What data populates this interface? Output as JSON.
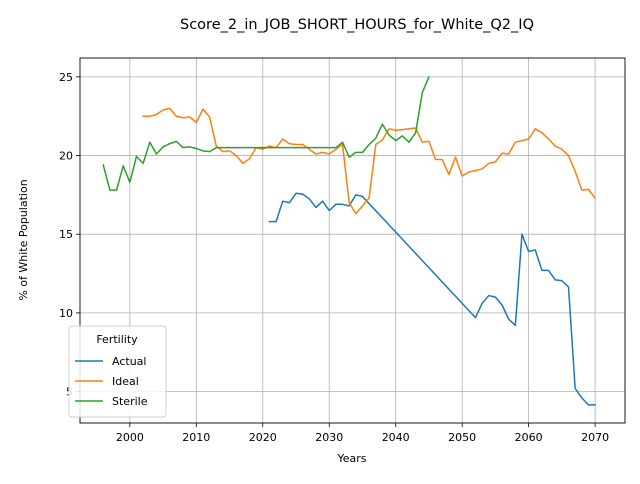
{
  "chart_data": {
    "type": "line",
    "title": "Score_2_in_JOB_SHORT_HOURS_for_White_Q2_IQ",
    "xlabel": "Years",
    "ylabel": "% of White Population",
    "xlim": [
      1992.5,
      2074.5
    ],
    "ylim": [
      3.0,
      26.2
    ],
    "xticks": [
      2000,
      2010,
      2020,
      2030,
      2040,
      2050,
      2060,
      2070
    ],
    "yticks": [
      5,
      10,
      15,
      20,
      25
    ],
    "grid": true,
    "legend": {
      "title": "Fertility",
      "position": "lower-left"
    },
    "series": [
      {
        "name": "Actual",
        "color": "#1f77b4",
        "points": [
          [
            2021,
            15.8
          ],
          [
            2022,
            15.8
          ],
          [
            2023,
            17.1
          ],
          [
            2024,
            17.0
          ],
          [
            2025,
            17.6
          ],
          [
            2026,
            17.55
          ],
          [
            2027,
            17.25
          ],
          [
            2028,
            16.7
          ],
          [
            2029,
            17.1
          ],
          [
            2030,
            16.5
          ],
          [
            2031,
            16.9
          ],
          [
            2032,
            16.9
          ],
          [
            2033,
            16.8
          ],
          [
            2034,
            17.5
          ],
          [
            2035,
            17.4
          ],
          [
            2052,
            9.7
          ],
          [
            2053,
            10.6
          ],
          [
            2054,
            11.1
          ],
          [
            2055,
            11.0
          ],
          [
            2056,
            10.5
          ],
          [
            2057,
            9.6
          ],
          [
            2058,
            9.2
          ],
          [
            2059,
            15.0
          ],
          [
            2060,
            13.9
          ],
          [
            2061,
            14.0
          ],
          [
            2062,
            12.7
          ],
          [
            2063,
            12.7
          ],
          [
            2064,
            12.1
          ],
          [
            2065,
            12.05
          ],
          [
            2066,
            11.65
          ],
          [
            2067,
            5.2
          ],
          [
            2068,
            4.6
          ],
          [
            2069,
            4.15
          ],
          [
            2070,
            4.15
          ]
        ]
      },
      {
        "name": "Ideal",
        "color": "#ff7f0e",
        "points": [
          [
            2002,
            22.5
          ],
          [
            2003,
            22.5
          ],
          [
            2004,
            22.6
          ],
          [
            2005,
            22.9
          ],
          [
            2006,
            23.0
          ],
          [
            2007,
            22.5
          ],
          [
            2008,
            22.4
          ],
          [
            2009,
            22.45
          ],
          [
            2010,
            22.1
          ],
          [
            2011,
            22.95
          ],
          [
            2012,
            22.45
          ],
          [
            2013,
            20.6
          ],
          [
            2014,
            20.25
          ],
          [
            2015,
            20.3
          ],
          [
            2016,
            20.0
          ],
          [
            2017,
            19.5
          ],
          [
            2018,
            19.8
          ],
          [
            2019,
            20.5
          ],
          [
            2020,
            20.4
          ],
          [
            2021,
            20.6
          ],
          [
            2022,
            20.5
          ],
          [
            2023,
            21.05
          ],
          [
            2024,
            20.75
          ],
          [
            2025,
            20.7
          ],
          [
            2026,
            20.7
          ],
          [
            2027,
            20.4
          ],
          [
            2028,
            20.1
          ],
          [
            2029,
            20.2
          ],
          [
            2030,
            20.1
          ],
          [
            2031,
            20.4
          ],
          [
            2032,
            20.7
          ],
          [
            2033,
            17.0
          ],
          [
            2034,
            16.3
          ],
          [
            2035,
            16.8
          ],
          [
            2036,
            17.3
          ],
          [
            2037,
            20.7
          ],
          [
            2038,
            21.0
          ],
          [
            2039,
            21.7
          ],
          [
            2040,
            21.6
          ],
          [
            2041,
            21.65
          ],
          [
            2042,
            21.7
          ],
          [
            2043,
            21.75
          ],
          [
            2044,
            20.85
          ],
          [
            2045,
            20.9
          ],
          [
            2046,
            19.75
          ],
          [
            2047,
            19.75
          ],
          [
            2048,
            18.8
          ],
          [
            2049,
            19.9
          ],
          [
            2050,
            18.7
          ],
          [
            2051,
            18.95
          ],
          [
            2052,
            19.05
          ],
          [
            2053,
            19.15
          ],
          [
            2054,
            19.5
          ],
          [
            2055,
            19.6
          ],
          [
            2056,
            20.15
          ],
          [
            2057,
            20.1
          ],
          [
            2058,
            20.85
          ],
          [
            2059,
            20.95
          ],
          [
            2060,
            21.05
          ],
          [
            2061,
            21.7
          ],
          [
            2062,
            21.45
          ],
          [
            2063,
            21.05
          ],
          [
            2064,
            20.6
          ],
          [
            2065,
            20.4
          ],
          [
            2066,
            20.0
          ],
          [
            2067,
            19.0
          ],
          [
            2068,
            17.8
          ],
          [
            2069,
            17.85
          ],
          [
            2070,
            17.3
          ]
        ]
      },
      {
        "name": "Sterile",
        "color": "#2ca02c",
        "points": [
          [
            1996,
            19.4
          ],
          [
            1997,
            17.8
          ],
          [
            1998,
            17.8
          ],
          [
            1999,
            19.35
          ],
          [
            2000,
            18.3
          ],
          [
            2001,
            19.95
          ],
          [
            2002,
            19.5
          ],
          [
            2003,
            20.85
          ],
          [
            2004,
            20.1
          ],
          [
            2005,
            20.55
          ],
          [
            2006,
            20.75
          ],
          [
            2007,
            20.9
          ],
          [
            2008,
            20.5
          ],
          [
            2009,
            20.55
          ],
          [
            2010,
            20.45
          ],
          [
            2011,
            20.3
          ],
          [
            2012,
            20.25
          ],
          [
            2013,
            20.5
          ],
          [
            2014,
            20.5
          ],
          [
            2015,
            20.5
          ],
          [
            2016,
            20.5
          ],
          [
            2017,
            20.5
          ],
          [
            2018,
            20.5
          ],
          [
            2019,
            20.5
          ],
          [
            2020,
            20.5
          ],
          [
            2021,
            20.5
          ],
          [
            2022,
            20.5
          ],
          [
            2023,
            20.5
          ],
          [
            2024,
            20.5
          ],
          [
            2025,
            20.5
          ],
          [
            2026,
            20.5
          ],
          [
            2027,
            20.5
          ],
          [
            2028,
            20.5
          ],
          [
            2029,
            20.5
          ],
          [
            2030,
            20.5
          ],
          [
            2031,
            20.5
          ],
          [
            2032,
            20.85
          ],
          [
            2033,
            19.9
          ],
          [
            2034,
            20.2
          ],
          [
            2035,
            20.2
          ],
          [
            2036,
            20.7
          ],
          [
            2037,
            21.1
          ],
          [
            2038,
            22.0
          ],
          [
            2039,
            21.3
          ],
          [
            2040,
            20.95
          ],
          [
            2041,
            21.25
          ],
          [
            2042,
            20.85
          ],
          [
            2043,
            21.45
          ],
          [
            2044,
            24.0
          ],
          [
            2045,
            25.0
          ]
        ]
      }
    ]
  }
}
